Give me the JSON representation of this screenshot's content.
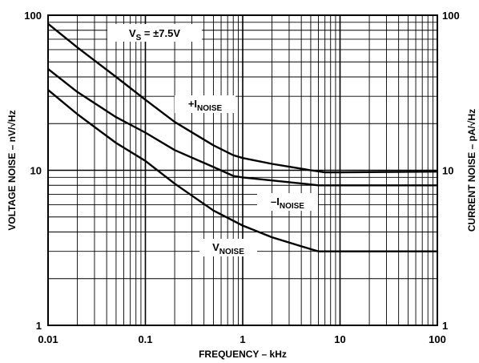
{
  "chart_data": {
    "type": "line",
    "xscale": "log",
    "yscale": "log",
    "xlim": [
      0.01,
      100
    ],
    "ylim": [
      1,
      100
    ],
    "grid": true,
    "xlabel": "FREQUENCY – kHz",
    "ylabel": "VOLTAGE NOISE – nV/√Hz",
    "y2label": "CURRENT NOISE – pA/√Hz",
    "xticks": [
      {
        "value": 0.01,
        "label": "0.01"
      },
      {
        "value": 0.1,
        "label": "0.1"
      },
      {
        "value": 1,
        "label": "1"
      },
      {
        "value": 10,
        "label": "10"
      },
      {
        "value": 100,
        "label": "100"
      }
    ],
    "yticks": [
      {
        "value": 1,
        "label": "1"
      },
      {
        "value": 10,
        "label": "10"
      },
      {
        "value": 100,
        "label": "100"
      }
    ],
    "y2ticks": [
      {
        "value": 1,
        "label": "1"
      },
      {
        "value": 10,
        "label": "10"
      },
      {
        "value": 100,
        "label": "100"
      }
    ],
    "annotation": {
      "main": "V",
      "sub": "S",
      "rest": " = ±7.5V"
    },
    "series": [
      {
        "name": "+I NOISE",
        "label": {
          "pre": "+I",
          "sub": "NOISE"
        },
        "x": [
          0.01,
          0.02,
          0.05,
          0.1,
          0.2,
          0.5,
          0.8,
          1,
          2,
          5,
          7,
          10,
          100
        ],
        "y": [
          88,
          62,
          40,
          28.5,
          20.5,
          14.5,
          12.5,
          12,
          11,
          10,
          9.7,
          9.7,
          9.8
        ]
      },
      {
        "name": "-I NOISE",
        "label": {
          "pre": "–I",
          "sub": "NOISE"
        },
        "x": [
          0.01,
          0.02,
          0.05,
          0.1,
          0.2,
          0.5,
          0.8,
          1,
          2,
          5,
          6,
          10,
          100
        ],
        "y": [
          45,
          32,
          22,
          17.5,
          13.5,
          10.5,
          9.2,
          9,
          8.6,
          8.1,
          8,
          8,
          8
        ]
      },
      {
        "name": "V NOISE",
        "label": {
          "pre": "V",
          "sub": "NOISE"
        },
        "x": [
          0.01,
          0.02,
          0.05,
          0.1,
          0.2,
          0.5,
          1,
          2,
          5,
          6,
          10,
          100
        ],
        "y": [
          33,
          23,
          15,
          11.5,
          8.2,
          5.5,
          4.4,
          3.7,
          3.1,
          3,
          3,
          3
        ]
      }
    ]
  }
}
